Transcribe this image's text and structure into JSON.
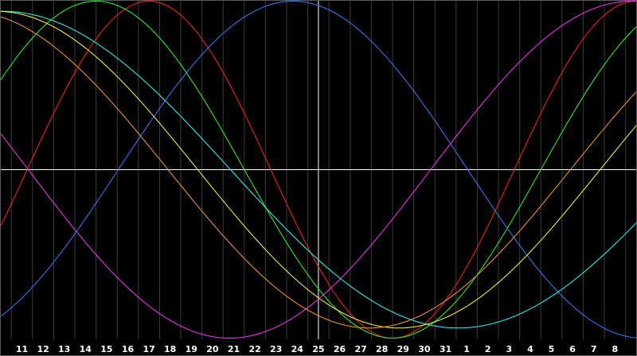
{
  "chart_data": {
    "type": "line",
    "x": [
      "11",
      "12",
      "13",
      "14",
      "15",
      "16",
      "17",
      "18",
      "19",
      "20",
      "21",
      "22",
      "23",
      "24",
      "25",
      "26",
      "27",
      "28",
      "29",
      "30",
      "31",
      "1",
      "2",
      "3",
      "4",
      "5",
      "6",
      "7",
      "8"
    ],
    "x_start": 10.1,
    "x_end": 40.05,
    "ylim": [
      -1,
      1
    ],
    "zero_line_y": 0,
    "cursor_x_label": "25",
    "grid": "vertical",
    "background": "#000000",
    "axis_line_color": "#ffffff",
    "grid_color": "#3a3a3a",
    "series": [
      {
        "color": "#ff2020",
        "period": 23,
        "peak_day": 17.0,
        "amplitude": 1.0
      },
      {
        "color": "#20ff20",
        "period": 28,
        "peak_day": 14.5,
        "amplitude": 1.0
      },
      {
        "color": "#2f7fff",
        "period": 33,
        "peak_day": 23.8,
        "amplitude": 1.0
      },
      {
        "color": "#ff30ff",
        "period": 38,
        "peak_day": 39.8,
        "amplitude": 1.0
      },
      {
        "color": "#20ffff",
        "period": 43,
        "peak_day": 10.1,
        "amplitude": 0.94
      },
      {
        "color": "#ffff30",
        "period": 38,
        "peak_day": 9.8,
        "amplitude": 0.94
      },
      {
        "color": "#ff9a20",
        "period": 38,
        "peak_day": 8.4,
        "amplitude": 0.94
      }
    ]
  }
}
